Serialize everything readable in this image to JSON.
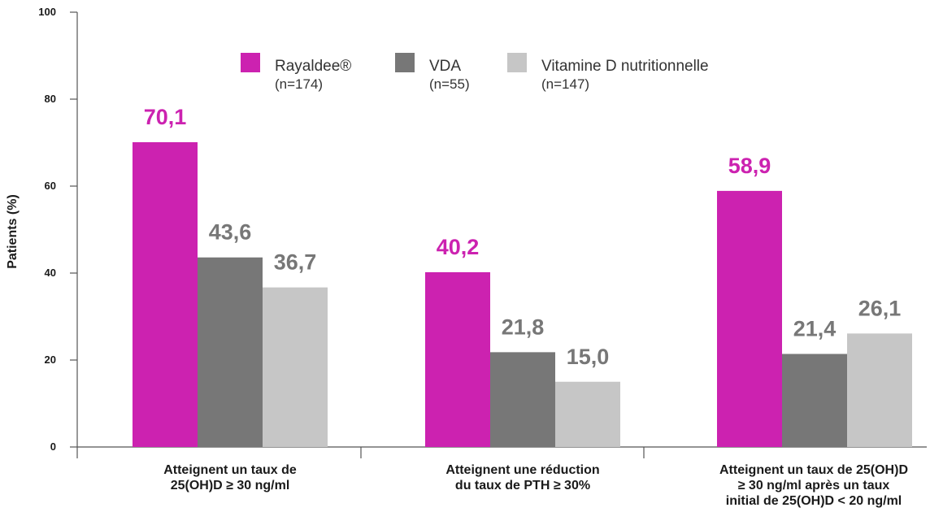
{
  "chart_data": {
    "type": "bar",
    "ylabel": "Patients (%)",
    "ylim": [
      0,
      100
    ],
    "yticks": [
      "0",
      "20",
      "40",
      "60",
      "80",
      "100"
    ],
    "categories": [
      [
        "Atteignent un taux de",
        "25(OH)D ≥ 30 ng/ml"
      ],
      [
        "Atteignent une réduction",
        "du taux de PTH ≥ 30%"
      ],
      [
        "Atteignent un taux de 25(OH)D",
        "≥ 30 ng/ml après un taux",
        "initial de 25(OH)D < 20 ng/ml"
      ]
    ],
    "series": [
      {
        "name": "Rayaldee®",
        "n": "(n=174)",
        "color": "#cc22b0",
        "label_color": "#cc22b0",
        "values": [
          70.1,
          40.2,
          58.9
        ],
        "labels": [
          "70,1",
          "40,2",
          "58,9"
        ]
      },
      {
        "name": "VDA",
        "n": "(n=55)",
        "color": "#777777",
        "label_color": "#777777",
        "values": [
          43.6,
          21.8,
          21.4
        ],
        "labels": [
          "43,6",
          "21,8",
          "21,4"
        ]
      },
      {
        "name": "Vitamine D nutritionnelle",
        "n": "(n=147)",
        "color": "#c6c6c6",
        "label_color": "#777777",
        "values": [
          36.7,
          15.0,
          26.1
        ],
        "labels": [
          "36,7",
          "15,0",
          "26,1"
        ]
      }
    ],
    "legend_position": "top-center",
    "grid": false
  }
}
